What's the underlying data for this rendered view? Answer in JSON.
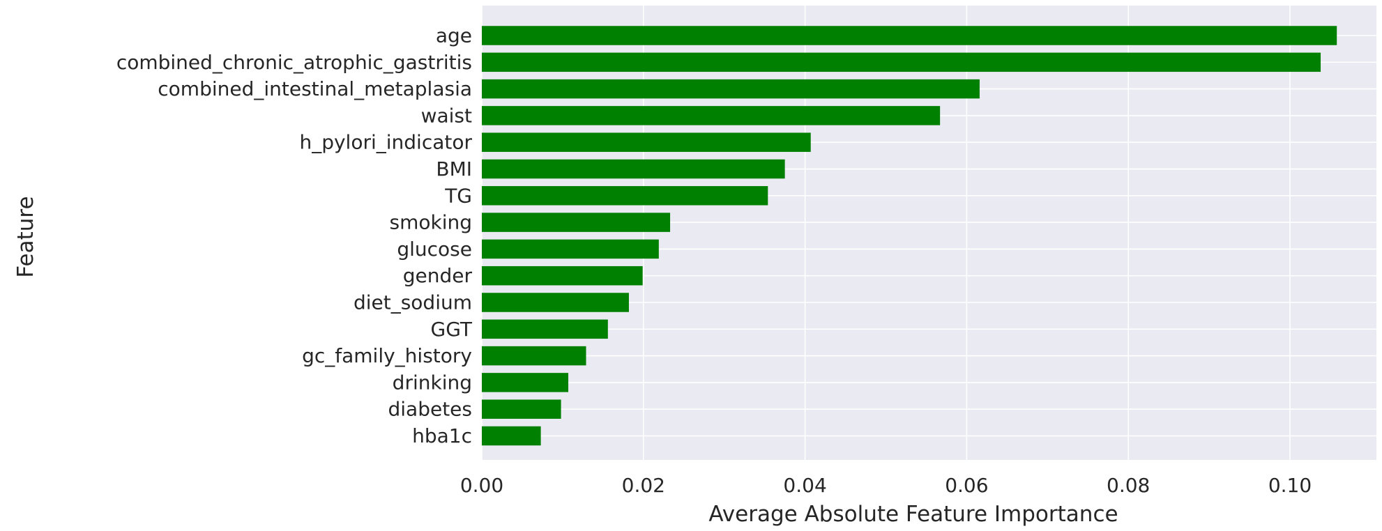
{
  "chart_data": {
    "type": "bar",
    "orientation": "horizontal",
    "title": "",
    "xlabel": "Average Absolute Feature Importance",
    "ylabel": "Feature",
    "xlim": [
      0,
      0.1107
    ],
    "xticks": [
      0.0,
      0.02,
      0.04,
      0.06,
      0.08,
      0.1
    ],
    "xtick_labels": [
      "0.00",
      "0.02",
      "0.04",
      "0.06",
      "0.08",
      "0.10"
    ],
    "grid": true,
    "legend": "none",
    "bar_color": "#008000",
    "background_color": "#eaeaf2",
    "categories": [
      "age",
      "combined_chronic_atrophic_gastritis",
      "combined_intestinal_metaplasia",
      "waist",
      "h_pylori_indicator",
      "BMI",
      "TG",
      "smoking",
      "glucose",
      "gender",
      "diet_sodium",
      "GGT",
      "gc_family_history",
      "drinking",
      "diabetes",
      "hba1c"
    ],
    "values": [
      0.1058,
      0.1038,
      0.0616,
      0.0567,
      0.0407,
      0.0375,
      0.0354,
      0.0233,
      0.0219,
      0.0199,
      0.0182,
      0.0156,
      0.0129,
      0.0107,
      0.0098,
      0.0073
    ]
  }
}
